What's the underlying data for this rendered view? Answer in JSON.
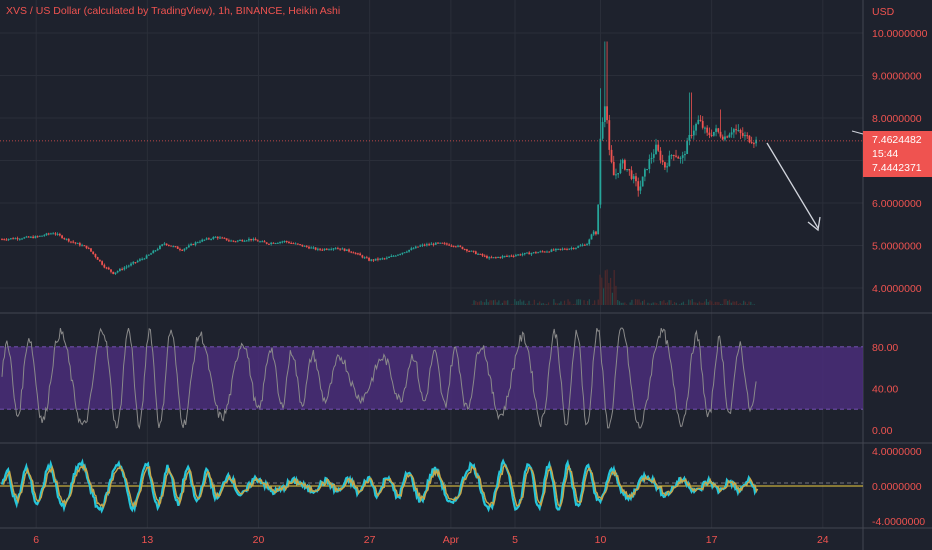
{
  "header": {
    "title": "XVS / US Dollar (calculated by TradingView), 1h, BINANCE, Heikin Ashi",
    "currency": "USD"
  },
  "price_badge": {
    "price": "7.4624482",
    "countdown": "15:44",
    "secondary": "7.4442371"
  },
  "colors": {
    "background": "#1e222d",
    "bull": "#26a69a",
    "bear": "#ef5350",
    "axis_text": "#ef5350",
    "grid": "#2a2e39",
    "stoch_band": "#4a2d7a",
    "stoch_line": "#8a8a8a",
    "osc_fast": "#26c6da",
    "osc_slow": "#c8a84a",
    "zero_line": "#f0d040"
  },
  "chart_data": [
    {
      "type": "candlestick",
      "chart_style": "Heikin Ashi",
      "x_tick_labels": [
        "6",
        "13",
        "20",
        "27",
        "Apr",
        "5",
        "10",
        "17",
        "24"
      ],
      "y_tick_labels": [
        "10.0000000",
        "9.0000000",
        "8.0000000",
        "7.0000000",
        "6.0000000",
        "5.0000000",
        "4.0000000"
      ],
      "ylim": [
        3.5,
        10.5
      ],
      "grid": true,
      "last_price": 7.4624482,
      "path_points": [
        {
          "t": 0,
          "v": 5.15
        },
        {
          "t": 4,
          "v": 5.2
        },
        {
          "t": 6,
          "v": 5.3
        },
        {
          "t": 8,
          "v": 5.1
        },
        {
          "t": 10,
          "v": 4.95
        },
        {
          "t": 12,
          "v": 4.5
        },
        {
          "t": 13,
          "v": 4.35
        },
        {
          "t": 15,
          "v": 4.55
        },
        {
          "t": 17,
          "v": 4.75
        },
        {
          "t": 19,
          "v": 5.05
        },
        {
          "t": 21,
          "v": 4.9
        },
        {
          "t": 23,
          "v": 5.1
        },
        {
          "t": 25,
          "v": 5.2
        },
        {
          "t": 27,
          "v": 5.1
        },
        {
          "t": 29,
          "v": 5.15
        },
        {
          "t": 31,
          "v": 5.05
        },
        {
          "t": 33,
          "v": 5.1
        },
        {
          "t": 35,
          "v": 5.0
        },
        {
          "t": 37,
          "v": 4.9
        },
        {
          "t": 39,
          "v": 4.95
        },
        {
          "t": 41,
          "v": 4.85
        },
        {
          "t": 43,
          "v": 4.65
        },
        {
          "t": 45,
          "v": 4.7
        },
        {
          "t": 47,
          "v": 4.85
        },
        {
          "t": 49,
          "v": 5.0
        },
        {
          "t": 51,
          "v": 5.05
        },
        {
          "t": 53,
          "v": 5.0
        },
        {
          "t": 55,
          "v": 4.85
        },
        {
          "t": 57,
          "v": 4.7
        },
        {
          "t": 59,
          "v": 4.75
        },
        {
          "t": 61,
          "v": 4.8
        },
        {
          "t": 63,
          "v": 4.85
        },
        {
          "t": 65,
          "v": 4.9
        },
        {
          "t": 67,
          "v": 4.95
        },
        {
          "t": 68.5,
          "v": 5.05
        },
        {
          "t": 69.2,
          "v": 5.35
        },
        {
          "t": 69.6,
          "v": 5.2
        },
        {
          "t": 70.0,
          "v": 7.6
        },
        {
          "t": 70.6,
          "v": 8.5
        },
        {
          "t": 71.0,
          "v": 7.2
        },
        {
          "t": 71.6,
          "v": 6.6
        },
        {
          "t": 72.5,
          "v": 6.95
        },
        {
          "t": 73.5,
          "v": 6.7
        },
        {
          "t": 74.5,
          "v": 6.3
        },
        {
          "t": 75.5,
          "v": 6.9
        },
        {
          "t": 76.5,
          "v": 7.3
        },
        {
          "t": 77.5,
          "v": 6.85
        },
        {
          "t": 78.5,
          "v": 7.2
        },
        {
          "t": 79.5,
          "v": 7.0
        },
        {
          "t": 80.5,
          "v": 7.6
        },
        {
          "t": 81.5,
          "v": 7.95
        },
        {
          "t": 82.5,
          "v": 7.6
        },
        {
          "t": 83.5,
          "v": 7.7
        },
        {
          "t": 84.5,
          "v": 7.55
        },
        {
          "t": 85.5,
          "v": 7.75
        },
        {
          "t": 86.5,
          "v": 7.6
        },
        {
          "t": 87.5,
          "v": 7.5
        },
        {
          "t": 88.2,
          "v": 7.46
        }
      ],
      "spikes": [
        {
          "t": 70.6,
          "high": 9.8
        },
        {
          "t": 70.0,
          "high": 8.7
        },
        {
          "t": 80.5,
          "high": 8.6
        },
        {
          "t": 84.0,
          "high": 8.2
        }
      ],
      "volume_note": "volume bars near bottom of price pane"
    },
    {
      "type": "line",
      "indicator": "stochastic",
      "y_tick_labels": [
        "80.00",
        "40.00",
        "0.00"
      ],
      "ylim": [
        -5,
        105
      ],
      "band": [
        20,
        80
      ],
      "grid": true
    },
    {
      "type": "line",
      "indicator": "oscillator",
      "y_tick_labels": [
        "4.0000000",
        "0.0000000",
        "-4.0000000"
      ],
      "ylim": [
        -4,
        4
      ],
      "zero_line": 0,
      "grid": true
    }
  ]
}
